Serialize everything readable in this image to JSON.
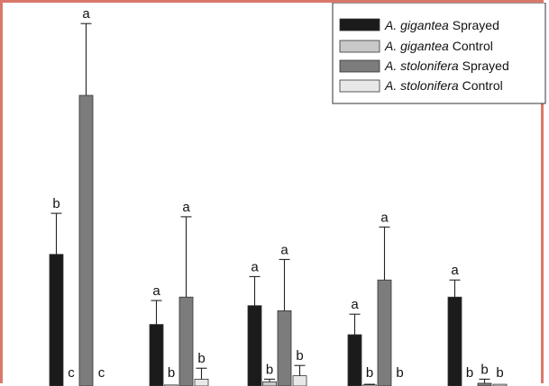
{
  "chart_data": {
    "type": "bar",
    "groups": 5,
    "ylim": [
      0,
      10
    ],
    "grid": false,
    "legend_position": "top-right",
    "series": [
      {
        "legend_italic": "A. gigantea",
        "legend_rest": " Sprayed",
        "color": "#1b1b1b",
        "values": [
          3.85,
          1.8,
          2.35,
          1.5,
          2.6
        ],
        "errors": [
          1.2,
          0.7,
          0.85,
          0.6,
          0.5
        ],
        "letters": [
          "b",
          "a",
          "a",
          "a",
          "a"
        ]
      },
      {
        "legend_italic": "A. gigantea",
        "legend_rest": " Control",
        "color": "#c8c8c8",
        "values": [
          0.0,
          0.03,
          0.12,
          0.03,
          0.0
        ],
        "errors": [
          0.0,
          0.0,
          0.08,
          0.02,
          0.0
        ],
        "letters": [
          "c",
          "b",
          "b",
          "b",
          "b"
        ]
      },
      {
        "legend_italic": "A. stolonifera",
        "legend_rest": " Sprayed",
        "color": "#7c7c7c",
        "values": [
          8.5,
          2.6,
          2.2,
          3.1,
          0.08
        ],
        "errors": [
          2.1,
          2.35,
          1.5,
          1.55,
          0.12
        ],
        "letters": [
          "a",
          "a",
          "a",
          "a",
          "b"
        ]
      },
      {
        "legend_italic": "A. stolonifera",
        "legend_rest": " Control",
        "color": "#e8e8e8",
        "values": [
          0.0,
          0.2,
          0.3,
          0.0,
          0.05
        ],
        "errors": [
          0.0,
          0.32,
          0.3,
          0.0,
          0.0
        ],
        "letters": [
          "c",
          "b",
          "b",
          "b",
          "b"
        ]
      }
    ]
  }
}
